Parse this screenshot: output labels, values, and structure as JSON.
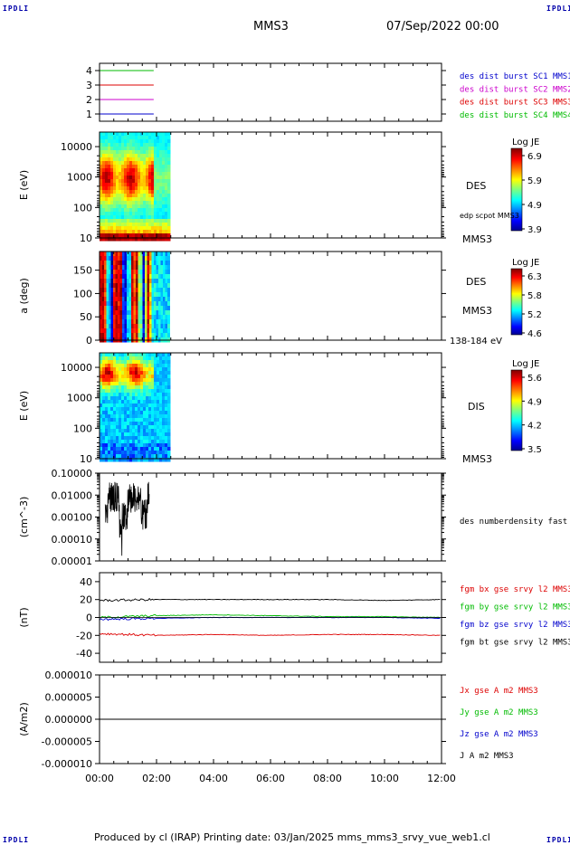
{
  "corners": {
    "tl": "IPDLI",
    "tr": "IPDLI",
    "bl": "IPDLI",
    "br": "IPDLI"
  },
  "header": {
    "spacecraft": "MMS3",
    "datetime": "07/Sep/2022 00:00"
  },
  "footer": {
    "text": "Produced by cl (IRAP)   Printing date: 03/Jan/2025   mms_mms3_srvy_vue_web1.cl"
  },
  "colors": {
    "red": "#dd0000",
    "green": "#00bb00",
    "blue": "#0000cc",
    "magenta": "#cc00cc",
    "black": "#000000"
  },
  "time_axis": {
    "ticks": [
      "00:00",
      "02:00",
      "04:00",
      "06:00",
      "08:00",
      "10:00",
      "12:00"
    ]
  },
  "chart_data": [
    {
      "type": "line",
      "panel": "coverage",
      "ylim": [
        0.5,
        4.5
      ],
      "yticks": [
        "1",
        "2",
        "3",
        "4"
      ],
      "series": [
        {
          "name": "des dist burst SC1 MMS1",
          "color": "#0000cc",
          "level": 1,
          "x_hours": [
            0,
            1.9
          ]
        },
        {
          "name": "des dist burst SC2 MMS2",
          "color": "#cc00cc",
          "level": 2,
          "x_hours": [
            0,
            1.9
          ]
        },
        {
          "name": "des dist burst SC3 MMS3",
          "color": "#dd0000",
          "level": 3,
          "x_hours": [
            0,
            1.9
          ]
        },
        {
          "name": "des dist burst SC4 MMS4",
          "color": "#00bb00",
          "level": 4,
          "x_hours": [
            0,
            1.9
          ]
        }
      ]
    },
    {
      "type": "heatmap",
      "panel": "des_energy",
      "ylabel": "E (eV)",
      "yscale": "log",
      "yticks": [
        "10",
        "100",
        "1000",
        "10000"
      ],
      "right_labels": [
        "DES",
        "edp scpot MMS3",
        "MMS3"
      ],
      "colorbar": {
        "title": "Log JE",
        "ticks": [
          "6.9",
          "5.9",
          "4.9",
          "3.9"
        ]
      },
      "x_range_hours": [
        0,
        2.4
      ]
    },
    {
      "type": "heatmap",
      "panel": "des_pitch",
      "ylabel": "a (deg)",
      "yticks": [
        "0",
        "50",
        "100",
        "150"
      ],
      "right_labels": [
        "DES",
        "MMS3",
        "138-184 eV"
      ],
      "colorbar": {
        "title": "Log JE",
        "ticks": [
          "6.3",
          "5.8",
          "5.2",
          "4.6"
        ]
      },
      "x_range_hours": [
        0,
        2.4
      ]
    },
    {
      "type": "heatmap",
      "panel": "dis_energy",
      "ylabel": "E (eV)",
      "yscale": "log",
      "yticks": [
        "10",
        "100",
        "1000",
        "10000"
      ],
      "right_labels": [
        "DIS",
        "MMS3"
      ],
      "colorbar": {
        "title": "Log JE",
        "ticks": [
          "5.6",
          "4.9",
          "4.2",
          "3.5"
        ]
      },
      "x_range_hours": [
        0,
        2.4
      ]
    },
    {
      "type": "line",
      "panel": "density",
      "ylabel": "(cm^-3)",
      "yscale": "log",
      "yticks": [
        "0.10000",
        "0.01000",
        "0.00100",
        "0.00010",
        "0.00001"
      ],
      "series": [
        {
          "name": "des numberdensity fast M",
          "color": "#000000"
        }
      ],
      "x_range_hours": [
        0.2,
        1.75
      ]
    },
    {
      "type": "line",
      "panel": "magnetic_field",
      "ylabel": "(nT)",
      "ylim": [
        -50,
        50
      ],
      "yticks": [
        "40",
        "20",
        "0",
        "-20",
        "-40"
      ],
      "series": [
        {
          "name": "fgm bx gse srvy l2 MMS3",
          "color": "#dd0000",
          "x": [
            0,
            2,
            4,
            6,
            8,
            10,
            12
          ],
          "values": [
            -18,
            -20,
            -19,
            -20,
            -19,
            -19,
            -20
          ]
        },
        {
          "name": "fgm by gse srvy l2 MMS3",
          "color": "#00bb00",
          "x": [
            0,
            2,
            4,
            6,
            8,
            10,
            12
          ],
          "values": [
            0,
            2,
            3,
            2,
            1,
            1,
            0
          ]
        },
        {
          "name": "fgm bz gse srvy l2 MMS3",
          "color": "#0000cc",
          "x": [
            0,
            2,
            4,
            6,
            8,
            10,
            12
          ],
          "values": [
            -2,
            -1,
            0,
            0,
            0,
            0,
            -1
          ]
        },
        {
          "name": "fgm bt gse srvy l2 MMS3",
          "color": "#000000",
          "x": [
            0,
            2,
            4,
            6,
            8,
            10,
            12
          ],
          "values": [
            19,
            20,
            20,
            20,
            20,
            19,
            20
          ]
        }
      ]
    },
    {
      "type": "line",
      "panel": "current",
      "ylabel": "(A/m2)",
      "ylim": [
        -1e-05,
        1e-05
      ],
      "yticks": [
        "0.000010",
        "0.000005",
        "0.000000",
        "-0.000005",
        "-0.000010"
      ],
      "series": [
        {
          "name": "Jx gse A m2 MMS3",
          "color": "#dd0000"
        },
        {
          "name": "Jy gse A m2 MMS3",
          "color": "#00bb00"
        },
        {
          "name": "Jz gse A m2 MMS3",
          "color": "#0000cc"
        },
        {
          "name": "J A m2 MMS3",
          "color": "#000000",
          "x": [
            0,
            12
          ],
          "values": [
            0,
            0
          ]
        }
      ]
    }
  ]
}
